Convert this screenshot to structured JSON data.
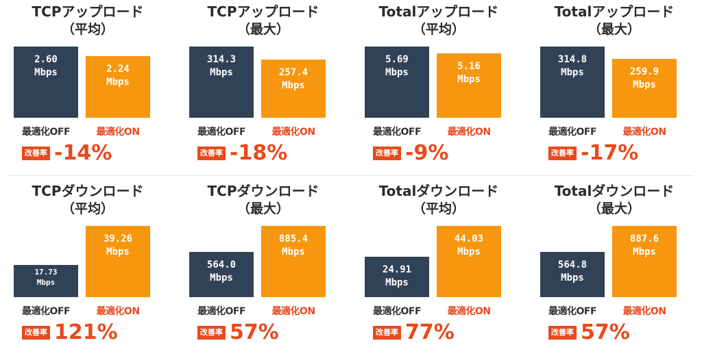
{
  "chart_data": [
    {
      "type": "bar",
      "title_l1": "TCPアップロード",
      "title_l2": "（平均）",
      "categories": [
        "最適化OFF",
        "最適化ON"
      ],
      "values": [
        2.6,
        2.24
      ],
      "value_labels": [
        "2.60",
        "2.24"
      ],
      "unit": "Mbps",
      "badge": "改善率",
      "improvement": "-14%"
    },
    {
      "type": "bar",
      "title_l1": "TCPアップロード",
      "title_l2": "（最大）",
      "categories": [
        "最適化OFF",
        "最適化ON"
      ],
      "values": [
        314.3,
        257.4
      ],
      "value_labels": [
        "314.3",
        "257.4"
      ],
      "unit": "Mbps",
      "badge": "改善率",
      "improvement": "-18%"
    },
    {
      "type": "bar",
      "title_l1": "Totalアップロード",
      "title_l2": "（平均）",
      "categories": [
        "最適化OFF",
        "最適化ON"
      ],
      "values": [
        5.69,
        5.16
      ],
      "value_labels": [
        "5.69",
        "5.16"
      ],
      "unit": "Mbps",
      "badge": "改善率",
      "improvement": "-9%"
    },
    {
      "type": "bar",
      "title_l1": "Totalアップロード",
      "title_l2": "（最大）",
      "categories": [
        "最適化OFF",
        "最適化ON"
      ],
      "values": [
        314.8,
        259.9
      ],
      "value_labels": [
        "314.8",
        "259.9"
      ],
      "unit": "Mbps",
      "badge": "改善率",
      "improvement": "-17%"
    },
    {
      "type": "bar",
      "title_l1": "TCPダウンロード",
      "title_l2": "（平均）",
      "categories": [
        "最適化OFF",
        "最適化ON"
      ],
      "values": [
        17.73,
        39.26
      ],
      "value_labels": [
        "17.73",
        "39.26"
      ],
      "unit": "Mbps",
      "badge": "改善率",
      "improvement": "121%"
    },
    {
      "type": "bar",
      "title_l1": "TCPダウンロード",
      "title_l2": "（最大）",
      "categories": [
        "最適化OFF",
        "最適化ON"
      ],
      "values": [
        564.0,
        885.4
      ],
      "value_labels": [
        "564.0",
        "885.4"
      ],
      "unit": "Mbps",
      "badge": "改善率",
      "improvement": "57%"
    },
    {
      "type": "bar",
      "title_l1": "Totalダウンロード",
      "title_l2": "（平均）",
      "categories": [
        "最適化OFF",
        "最適化ON"
      ],
      "values": [
        24.91,
        44.03
      ],
      "value_labels": [
        "24.91",
        "44.03"
      ],
      "unit": "Mbps",
      "badge": "改善率",
      "improvement": "77%"
    },
    {
      "type": "bar",
      "title_l1": "Totalダウンロード",
      "title_l2": "（最大）",
      "categories": [
        "最適化OFF",
        "最適化ON"
      ],
      "values": [
        564.8,
        887.6
      ],
      "value_labels": [
        "564.8",
        "887.6"
      ],
      "unit": "Mbps",
      "badge": "改善率",
      "improvement": "57%"
    }
  ],
  "colors": {
    "off": "#324256",
    "on": "#f7960f",
    "accent": "#e8491d"
  }
}
